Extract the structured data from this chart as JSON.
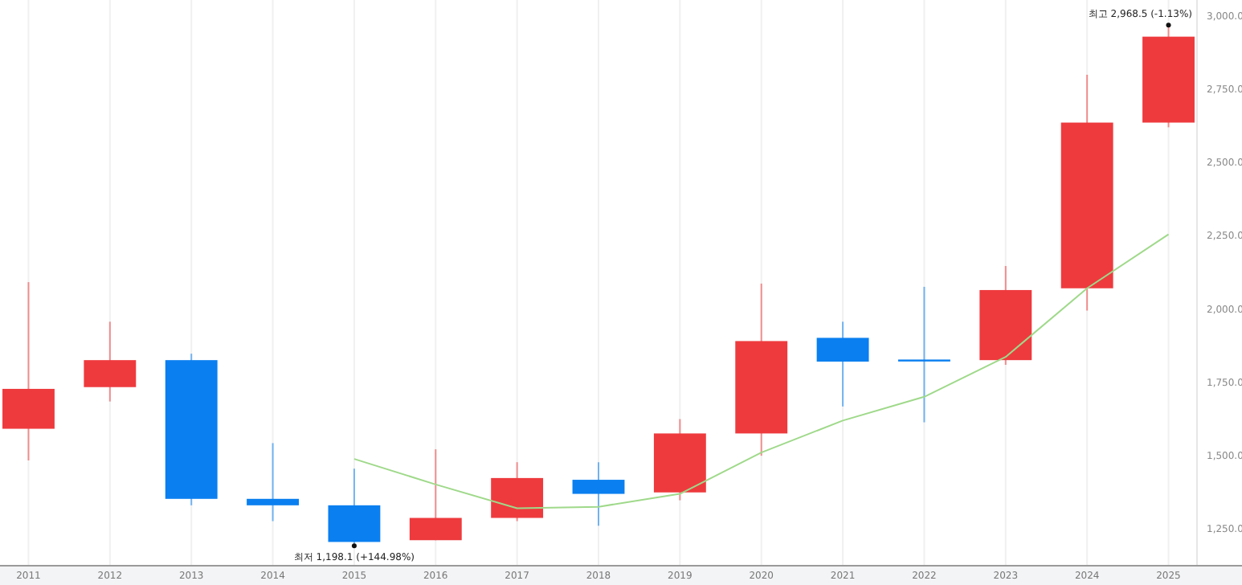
{
  "chart_data": {
    "type": "candlestick",
    "categories": [
      "2011",
      "2012",
      "2013",
      "2014",
      "2015",
      "2016",
      "2017",
      "2018",
      "2019",
      "2020",
      "2021",
      "2022",
      "2023",
      "2024",
      "2025"
    ],
    "ohlc": [
      [
        1592,
        2092,
        1484,
        1728
      ],
      [
        1734,
        1957,
        1685,
        1826
      ],
      [
        1826,
        1848,
        1331,
        1353
      ],
      [
        1353,
        1543,
        1277,
        1331
      ],
      [
        1331,
        1456,
        1198.1,
        1206
      ],
      [
        1212,
        1522,
        1212,
        1288
      ],
      [
        1288,
        1478,
        1277,
        1424
      ],
      [
        1418,
        1478,
        1261,
        1370
      ],
      [
        1375,
        1625,
        1348,
        1576
      ],
      [
        1576,
        2087,
        1500,
        1891
      ],
      [
        1902,
        1957,
        1668,
        1821
      ],
      [
        1828,
        2076,
        1614,
        1824
      ],
      [
        1826,
        2147,
        1810,
        2065
      ],
      [
        2071,
        2799,
        1995,
        2636
      ],
      [
        2636,
        2968.5,
        2620,
        2929
      ]
    ],
    "colors": [
      "#ee3a3d",
      "#ee3a3d",
      "#0a7ff0",
      "#0a7ff0",
      "#0a7ff0",
      "#ee3a3d",
      "#ee3a3d",
      "#0a7ff0",
      "#ee3a3d",
      "#ee3a3d",
      "#0a7ff0",
      "#0a7ff0",
      "#ee3a3d",
      "#ee3a3d",
      "#ee3a3d"
    ],
    "series": [
      {
        "type": "line",
        "color": "#9fd98a",
        "values": [
          null,
          null,
          null,
          null,
          1489,
          1402,
          1321,
          1326,
          1370,
          1511,
          1620,
          1701,
          1837,
          2071,
          2255
        ]
      }
    ],
    "ylim": [
      1125,
      3054
    ],
    "yticks": [
      {
        "value": 1250,
        "label": "1,250.0"
      },
      {
        "value": 1500,
        "label": "1,500.0"
      },
      {
        "value": 1750,
        "label": "1,750.0"
      },
      {
        "value": 2000,
        "label": "2,000.0"
      },
      {
        "value": 2250,
        "label": "2,250.0"
      },
      {
        "value": 2500,
        "label": "2,500.0"
      },
      {
        "value": 2750,
        "label": "2,750.0"
      },
      {
        "value": 3000,
        "label": "3,000.0"
      }
    ],
    "grid": "x",
    "annotations": [
      {
        "text": "최고 2,968.5 (-1.13%)",
        "x": "2025",
        "y": 2968.5
      },
      {
        "text": "최저 1,198.1 (+144.98%)",
        "x": "2015",
        "y": 1198.1
      }
    ]
  }
}
